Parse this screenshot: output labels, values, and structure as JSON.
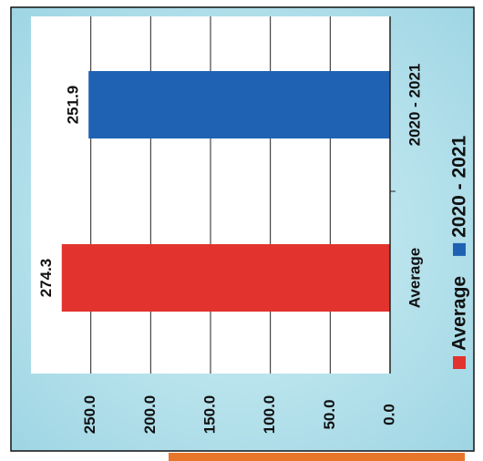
{
  "chart_data": {
    "type": "bar",
    "categories": [
      "Average",
      "2020 - 2021"
    ],
    "values": [
      274.3,
      251.9
    ],
    "colors": [
      "#e2332e",
      "#1f62b4"
    ],
    "xlim": [
      0,
      300
    ],
    "xticks": [
      {
        "value": 0,
        "label": "0.0"
      },
      {
        "value": 50,
        "label": "50.0"
      },
      {
        "value": 100,
        "label": "100.0"
      },
      {
        "value": 150,
        "label": "150.0"
      },
      {
        "value": 200,
        "label": "200.0"
      },
      {
        "value": 250,
        "label": "250.0"
      }
    ],
    "grid": true,
    "legend": "bottom"
  }
}
